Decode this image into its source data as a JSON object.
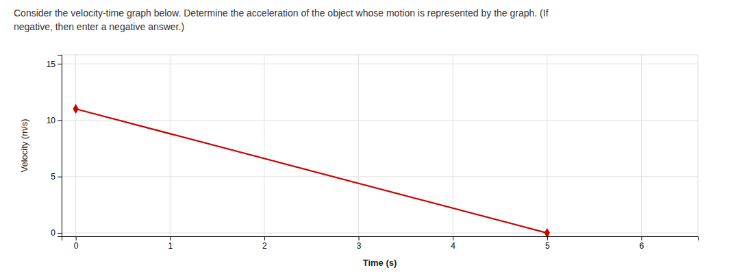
{
  "chart_data": {
    "type": "line",
    "title": "Consider the velocity-time graph below. Determine the acceleration of the object whose motion is represented by the graph. (If",
    "subtitle": "negative, then enter a negative answer.)",
    "xlabel": "Time (s)",
    "ylabel": "Velocity (m/s)",
    "x": [
      0,
      5
    ],
    "values": [
      11,
      0
    ],
    "color": "#cc0000",
    "marker": "diamond",
    "xlim": [
      -0.15,
      6.6
    ],
    "ylim": [
      -0.3,
      15.8
    ],
    "xticks": [
      0,
      1,
      2,
      3,
      4,
      5,
      6
    ],
    "yticks": [
      0,
      5,
      10,
      15
    ],
    "grid": true
  }
}
